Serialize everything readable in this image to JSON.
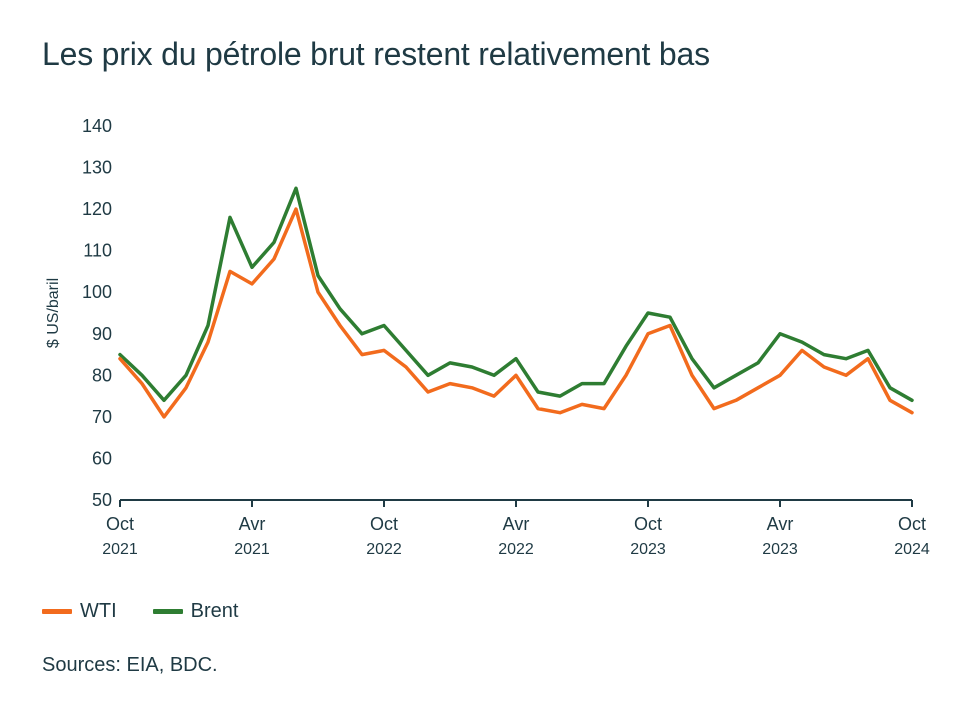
{
  "title": "Les prix du pétrole brut restent relativement bas",
  "source": "Sources: EIA, BDC.",
  "colors": {
    "wti": "#f26b1d",
    "brent": "#2e7d32",
    "axis": "#1f3a44"
  },
  "chart_data": {
    "type": "line",
    "title": "Les prix du pétrole brut restent relativement bas",
    "ylabel": "$ US/baril",
    "xlabel": "",
    "ylim": [
      50,
      140
    ],
    "yticks": [
      50,
      60,
      70,
      80,
      90,
      100,
      110,
      120,
      130,
      140
    ],
    "grid": false,
    "legend_position": "bottom-left",
    "x_ticks": [
      {
        "month": "Oct",
        "year": "2021"
      },
      {
        "month": "Avr",
        "year": "2021"
      },
      {
        "month": "Oct",
        "year": "2022"
      },
      {
        "month": "Avr",
        "year": "2022"
      },
      {
        "month": "Oct",
        "year": "2023"
      },
      {
        "month": "Avr",
        "year": "2023"
      },
      {
        "month": "Oct",
        "year": "2024"
      }
    ],
    "x": [
      "2021-10",
      "2021-11",
      "2021-12",
      "2022-01",
      "2022-02",
      "2022-03",
      "2022-04",
      "2022-05",
      "2022-06",
      "2022-07",
      "2022-08",
      "2022-09",
      "2022-10",
      "2022-11",
      "2022-12",
      "2023-01",
      "2023-02",
      "2023-03",
      "2023-04",
      "2023-05",
      "2023-06",
      "2023-07",
      "2023-08",
      "2023-09",
      "2023-10",
      "2023-11",
      "2023-12",
      "2024-01",
      "2024-02",
      "2024-03",
      "2024-04",
      "2024-05",
      "2024-06",
      "2024-07",
      "2024-08",
      "2024-09",
      "2024-10"
    ],
    "series": [
      {
        "name": "WTI",
        "color": "#f26b1d",
        "values": [
          84,
          78,
          70,
          77,
          88,
          105,
          102,
          108,
          120,
          100,
          92,
          85,
          86,
          82,
          76,
          78,
          77,
          75,
          80,
          72,
          71,
          73,
          72,
          80,
          90,
          92,
          80,
          72,
          74,
          77,
          80,
          86,
          82,
          80,
          84,
          74,
          71
        ]
      },
      {
        "name": "Brent",
        "color": "#2e7d32",
        "values": [
          85,
          80,
          74,
          80,
          92,
          118,
          106,
          112,
          125,
          104,
          96,
          90,
          92,
          86,
          80,
          83,
          82,
          80,
          84,
          76,
          75,
          78,
          78,
          87,
          95,
          94,
          84,
          77,
          80,
          83,
          90,
          88,
          85,
          84,
          86,
          77,
          74
        ]
      }
    ]
  }
}
